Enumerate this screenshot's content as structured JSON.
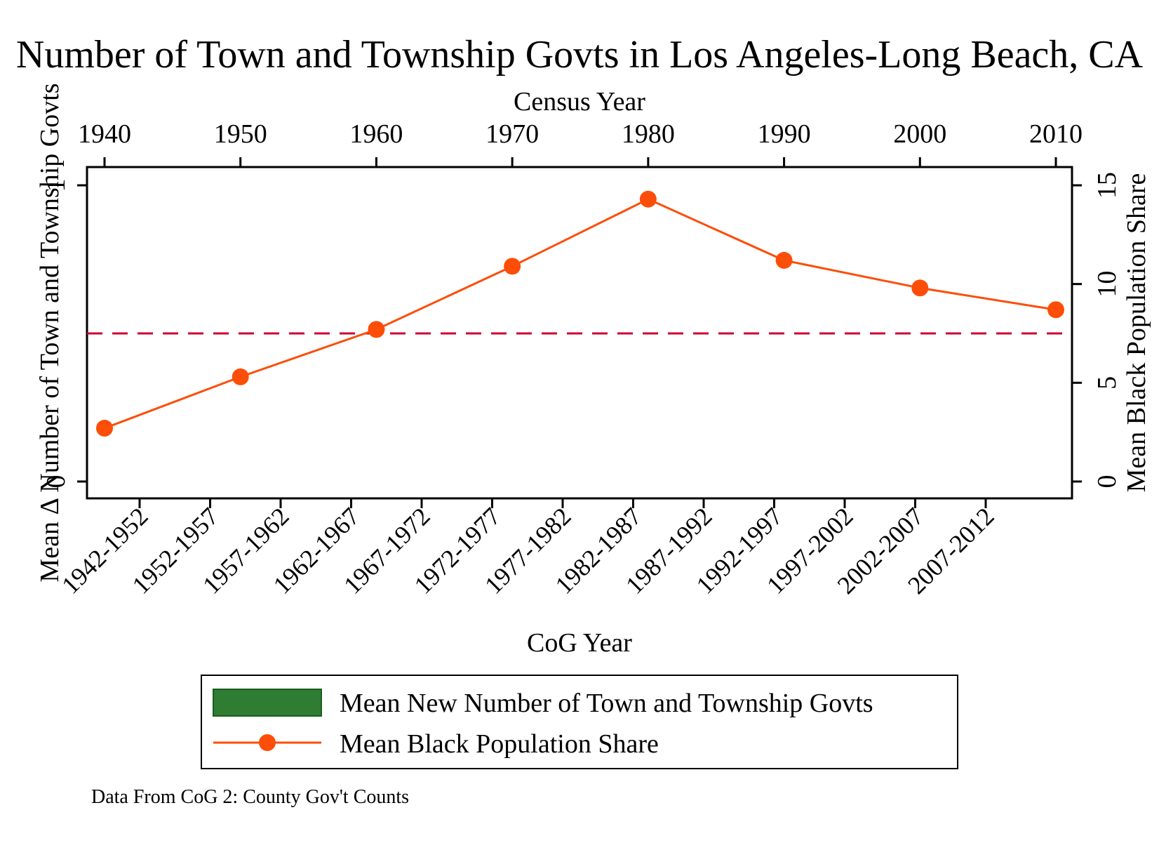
{
  "chart_data": {
    "type": "line",
    "title": "Number of Town and Township Govts in Los Angeles-Long Beach, CA",
    "top_axis": {
      "label": "Census Year",
      "range": [
        1940,
        2010
      ],
      "ticks": [
        "1940",
        "1950",
        "1960",
        "1970",
        "1980",
        "1990",
        "2000",
        "2010"
      ]
    },
    "bottom_axis": {
      "label": "CoG Year",
      "ticks": [
        "1942-1952",
        "1952-1957",
        "1957-1962",
        "1962-1967",
        "1967-1972",
        "1972-1977",
        "1977-1982",
        "1982-1987",
        "1987-1992",
        "1992-1997",
        "1997-2002",
        "2002-2007",
        "2007-2012"
      ]
    },
    "left_axis": {
      "label": "Mean Δ Number of Town and Township Govts",
      "ticks": [
        "0",
        "1"
      ],
      "range": [
        0,
        1
      ]
    },
    "right_axis": {
      "label": "Mean Black Population Share",
      "range": [
        0,
        15
      ],
      "ticks": [
        "0",
        "5",
        "10",
        "15"
      ]
    },
    "series": [
      {
        "name": "Mean Black Population Share",
        "axis": "right",
        "color": "#fc4e08",
        "x": [
          1940,
          1950,
          1960,
          1970,
          1980,
          1990,
          2000,
          2010
        ],
        "values": [
          2.7,
          5.3,
          7.7,
          10.9,
          14.3,
          11.2,
          9.8,
          8.7
        ]
      }
    ],
    "bar_series": {
      "name": "Mean New Number of Town and Township Govts",
      "color": "#2e7d32",
      "values": []
    },
    "reference_line": {
      "axis": "right",
      "value": 7.5,
      "style": "dashed",
      "color": "#cc0033"
    },
    "legend": {
      "placement": "bottom",
      "entries": [
        "Mean New Number of Town and Township Govts",
        "Mean Black Population Share"
      ]
    },
    "note": "Data From CoG 2: County Gov't Counts",
    "grid": false
  }
}
